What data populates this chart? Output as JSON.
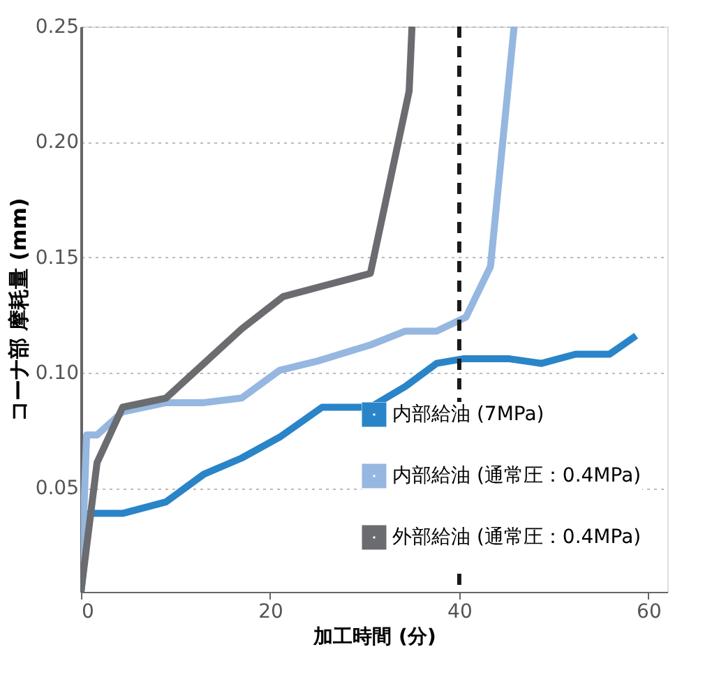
{
  "chart_data": {
    "type": "line",
    "xlabel": "加工時間 (分)",
    "ylabel": "コーナ部 摩耗量 (mm)",
    "xlim": [
      0,
      62
    ],
    "xticks": [
      0,
      20,
      40,
      60
    ],
    "ylim": [
      0.005,
      0.25
    ],
    "yticks": [
      0.05,
      {
        "value": 0.1,
        "label": "0.10"
      },
      0.15,
      {
        "value": 0.2,
        "label": "0.20"
      },
      0.25
    ],
    "grid": "y",
    "legend": "bottom right",
    "line_style": "solid",
    "marker": "none",
    "series": [
      {
        "name": "内部給油 (7MPa)",
        "color": "#2a84c8",
        "x": [
          0,
          0.9,
          4.4,
          9,
          13,
          17,
          21,
          25.5,
          30.6,
          34.3,
          37.6,
          40.4,
          45.3,
          48.7,
          52.3,
          55.9,
          58.7
        ],
        "values": [
          0.005,
          0.039,
          0.039,
          0.044,
          0.056,
          0.063,
          0.072,
          0.085,
          0.085,
          0.094,
          0.104,
          0.106,
          0.106,
          0.104,
          0.108,
          0.108,
          0.116
        ]
      },
      {
        "name": "内部給油 (通常圧：0.4MPa)",
        "color": "#95b7e0",
        "x": [
          0,
          0.6,
          1.7,
          4.4,
          9,
          13,
          17,
          21,
          25,
          30.6,
          34.3,
          37.6,
          40.7,
          43.3,
          45.8
        ],
        "values": [
          0.005,
          0.073,
          0.073,
          0.083,
          0.087,
          0.087,
          0.089,
          0.101,
          0.105,
          0.112,
          0.118,
          0.118,
          0.124,
          0.146,
          0.25
        ]
      },
      {
        "name": "外部給油 (通常圧：0.4MPa)",
        "color": "#6b6c70",
        "x": [
          0,
          1.7,
          4.4,
          9,
          13,
          17,
          21.4,
          26,
          30.6,
          34.7,
          35
        ],
        "values": [
          0.005,
          0.061,
          0.085,
          0.089,
          0.104,
          0.119,
          0.133,
          0.138,
          0.143,
          0.222,
          0.25
        ]
      }
    ],
    "ref_lines": [
      {
        "axis": "x",
        "value": 40,
        "color": "#1a1a1a",
        "line_style": "dashed"
      }
    ]
  }
}
